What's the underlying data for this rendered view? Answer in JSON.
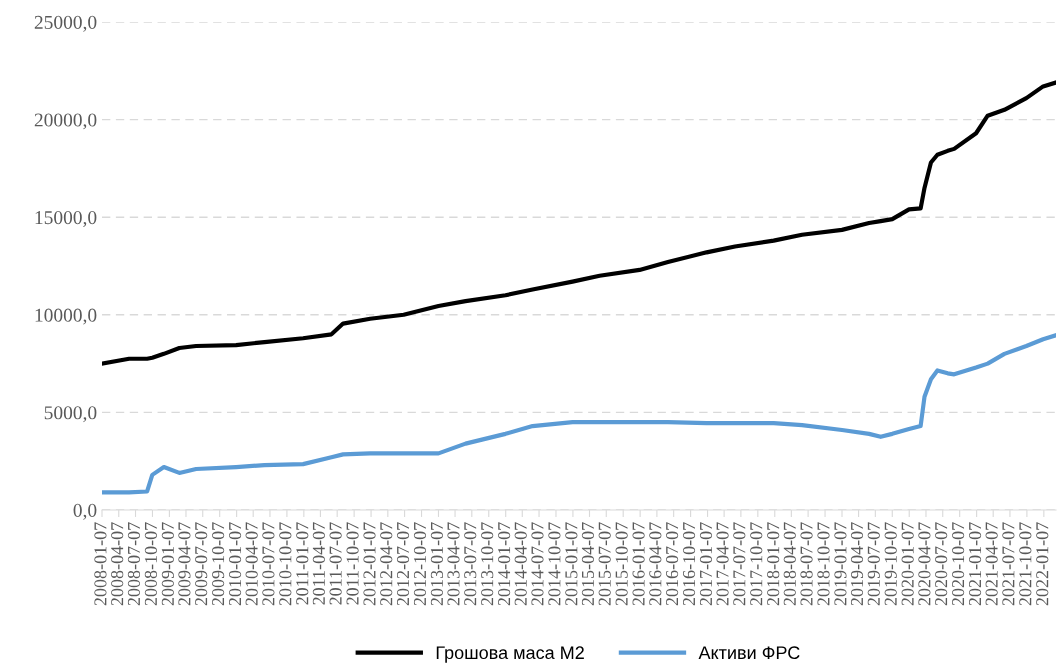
{
  "chart_data": {
    "type": "line",
    "x": [
      "2008-01-07",
      "2008-06-02",
      "2008-09-08",
      "2008-10-06",
      "2008-12-08",
      "2009-03-02",
      "2009-06-01",
      "2010-01-04",
      "2010-06-07",
      "2011-01-03",
      "2011-06-06",
      "2011-08-08",
      "2012-01-02",
      "2012-07-02",
      "2013-01-07",
      "2013-06-03",
      "2014-01-06",
      "2014-06-02",
      "2015-01-05",
      "2015-06-01",
      "2016-01-04",
      "2016-06-06",
      "2017-01-02",
      "2017-06-05",
      "2018-01-01",
      "2018-06-04",
      "2019-01-07",
      "2019-06-03",
      "2019-08-05",
      "2019-10-07",
      "2020-01-06",
      "2020-03-09",
      "2020-03-30",
      "2020-05-04",
      "2020-06-08",
      "2020-08-03",
      "2020-09-07",
      "2021-01-04",
      "2021-03-08",
      "2021-06-07",
      "2021-10-04",
      "2022-01-03",
      "2022-03-14"
    ],
    "series": [
      {
        "name": "Грошова маса M2",
        "color": "#000000",
        "values": [
          7500,
          7750,
          7750,
          7800,
          8000,
          8300,
          8400,
          8450,
          8600,
          8800,
          9000,
          9550,
          9800,
          10000,
          10450,
          10700,
          11000,
          11300,
          11700,
          12000,
          12300,
          12700,
          13200,
          13500,
          13800,
          14100,
          14350,
          14700,
          14800,
          14900,
          15400,
          15450,
          16500,
          17800,
          18200,
          18400,
          18500,
          19300,
          20200,
          20500,
          21100,
          21700,
          21900
        ]
      },
      {
        "name": "Активи ФРС",
        "color": "#5b9bd5",
        "values": [
          900,
          900,
          950,
          1800,
          2200,
          1900,
          2100,
          2200,
          2300,
          2350,
          2700,
          2850,
          2900,
          2900,
          2900,
          3400,
          3900,
          4300,
          4500,
          4500,
          4500,
          4500,
          4450,
          4450,
          4450,
          4350,
          4100,
          3900,
          3750,
          3900,
          4150,
          4300,
          5800,
          6700,
          7150,
          7000,
          6950,
          7300,
          7500,
          8000,
          8400,
          8750,
          8950
        ]
      }
    ],
    "xlim": [
      "2008-01-07",
      "2022-03-14"
    ],
    "xticks": [
      "2008-01-07",
      "2008-04-07",
      "2008-07-07",
      "2008-10-07",
      "2009-01-07",
      "2009-04-07",
      "2009-07-07",
      "2009-10-07",
      "2010-01-07",
      "2010-04-07",
      "2010-07-07",
      "2010-10-07",
      "2011-01-07",
      "2011-04-07",
      "2011-07-07",
      "2011-10-07",
      "2012-01-07",
      "2012-04-07",
      "2012-07-07",
      "2012-10-07",
      "2013-01-07",
      "2013-04-07",
      "2013-07-07",
      "2013-10-07",
      "2014-01-07",
      "2014-04-07",
      "2014-07-07",
      "2014-10-07",
      "2015-01-07",
      "2015-04-07",
      "2015-07-07",
      "2015-10-07",
      "2016-01-07",
      "2016-04-07",
      "2016-07-07",
      "2016-10-07",
      "2017-01-07",
      "2017-04-07",
      "2017-07-07",
      "2017-10-07",
      "2018-01-07",
      "2018-04-07",
      "2018-07-07",
      "2018-10-07",
      "2019-01-07",
      "2019-04-07",
      "2019-07-07",
      "2019-10-07",
      "2020-01-07",
      "2020-04-07",
      "2020-07-07",
      "2020-10-07",
      "2021-01-07",
      "2021-04-07",
      "2021-07-07",
      "2021-10-07",
      "2022-01-07"
    ],
    "ylim": [
      0,
      25000
    ],
    "yticks": [
      {
        "value": 0,
        "label": "0,0"
      },
      {
        "value": 5000,
        "label": "5000,0"
      },
      {
        "value": 10000,
        "label": "10000,0"
      },
      {
        "value": 15000,
        "label": "15000,0"
      },
      {
        "value": 20000,
        "label": "20000,0"
      },
      {
        "value": 25000,
        "label": "25000,0"
      }
    ],
    "grid": "y",
    "legend": "bottom",
    "marker": "none",
    "line_style": "solid"
  }
}
